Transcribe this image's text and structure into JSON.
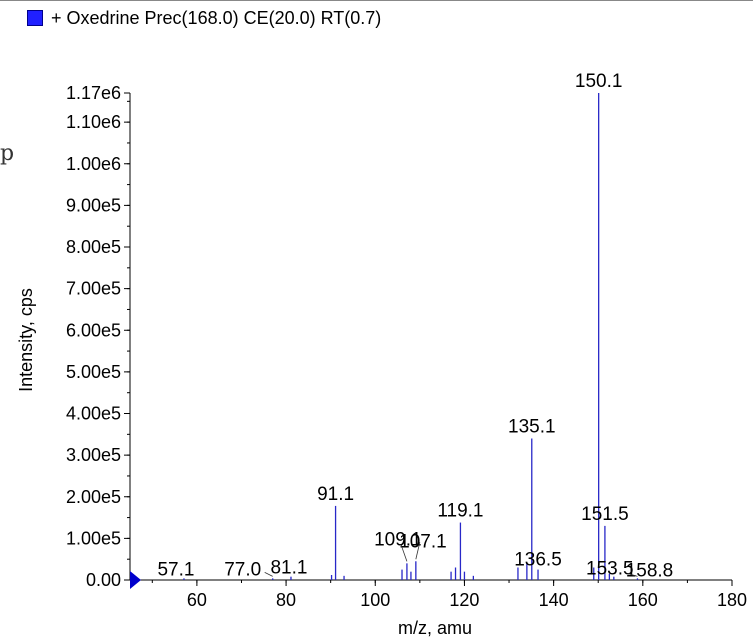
{
  "legend": {
    "label": "+ Oxedrine Prec(168.0) CE(20.0) RT(0.7)",
    "color": "#2020ff"
  },
  "edge_glyph": "p",
  "colors": {
    "series": "#2828c8",
    "axis": "#000000",
    "marker": "#0000cc"
  },
  "chart_data": {
    "type": "bar",
    "title": "",
    "xlabel": "m/z, amu",
    "ylabel": "Intensity, cps",
    "xlim": [
      45,
      180
    ],
    "ylim": [
      0,
      1170000
    ],
    "xticks": [
      60,
      80,
      100,
      120,
      140,
      160,
      180
    ],
    "yticks": [
      {
        "v": 0,
        "t": "0.00"
      },
      {
        "v": 100000,
        "t": "1.00e5"
      },
      {
        "v": 200000,
        "t": "2.00e5"
      },
      {
        "v": 300000,
        "t": "3.00e5"
      },
      {
        "v": 400000,
        "t": "4.00e5"
      },
      {
        "v": 500000,
        "t": "5.00e5"
      },
      {
        "v": 600000,
        "t": "6.00e5"
      },
      {
        "v": 700000,
        "t": "7.00e5"
      },
      {
        "v": 800000,
        "t": "8.00e5"
      },
      {
        "v": 900000,
        "t": "9.00e5"
      },
      {
        "v": 1000000,
        "t": "1.00e6"
      },
      {
        "v": 1100000,
        "t": "1.10e6"
      },
      {
        "v": 1170000,
        "t": "1.17e6"
      }
    ],
    "peaks": [
      {
        "x": 57.1,
        "y": 4000,
        "label": "57.1"
      },
      {
        "x": 77.0,
        "y": 4000,
        "label": "77.0"
      },
      {
        "x": 81.1,
        "y": 8000,
        "label": "81.1"
      },
      {
        "x": 90.2,
        "y": 12000
      },
      {
        "x": 91.1,
        "y": 178000,
        "label": "91.1"
      },
      {
        "x": 93.0,
        "y": 10000
      },
      {
        "x": 106.0,
        "y": 25000
      },
      {
        "x": 107.1,
        "y": 40000,
        "label": "107.1"
      },
      {
        "x": 108.0,
        "y": 20000
      },
      {
        "x": 109.1,
        "y": 45000,
        "label": "109.1"
      },
      {
        "x": 117.0,
        "y": 20000
      },
      {
        "x": 118.0,
        "y": 30000
      },
      {
        "x": 119.1,
        "y": 138000,
        "label": "119.1"
      },
      {
        "x": 120.0,
        "y": 20000
      },
      {
        "x": 122.0,
        "y": 10000
      },
      {
        "x": 132.0,
        "y": 30000
      },
      {
        "x": 134.0,
        "y": 40000
      },
      {
        "x": 135.1,
        "y": 340000,
        "label": "135.1"
      },
      {
        "x": 136.5,
        "y": 25000,
        "label": "136.5"
      },
      {
        "x": 149.0,
        "y": 30000
      },
      {
        "x": 150.1,
        "y": 1170000,
        "label": "150.1"
      },
      {
        "x": 151.5,
        "y": 130000,
        "label": "151.5"
      },
      {
        "x": 152.5,
        "y": 15000
      },
      {
        "x": 153.5,
        "y": 8000,
        "label": "153.5"
      },
      {
        "x": 158.8,
        "y": 4000,
        "label": "158.8"
      }
    ]
  }
}
